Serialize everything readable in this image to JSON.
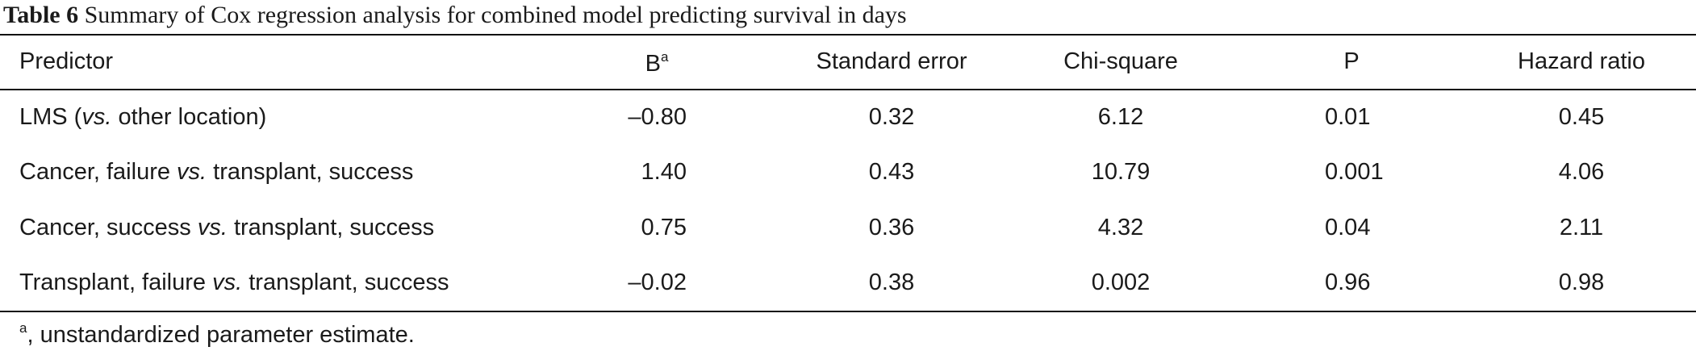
{
  "caption": {
    "label": "Table 6",
    "text": "Summary of Cox regression analysis for combined model predicting survival in days"
  },
  "table": {
    "headers": [
      [
        "Predictor"
      ],
      [
        "B",
        "a"
      ],
      [
        "Standard error"
      ],
      [
        "Chi-square"
      ],
      [
        "P"
      ],
      [
        "Hazard ratio"
      ]
    ],
    "rows": [
      [
        [
          "LMS (",
          "vs.",
          " other location)"
        ],
        "–0.80",
        "0.32",
        "6.12",
        "0.01",
        "0.45"
      ],
      [
        [
          "Cancer, failure ",
          "vs.",
          " transplant, success"
        ],
        "1.40",
        "0.43",
        "10.79",
        "0.001",
        "4.06"
      ],
      [
        [
          "Cancer, success ",
          "vs.",
          " transplant, success"
        ],
        "0.75",
        "0.36",
        "4.32",
        "0.04",
        "2.11"
      ],
      [
        [
          "Transplant, failure ",
          "vs.",
          " transplant, success"
        ],
        "–0.02",
        "0.38",
        "0.002",
        "0.96",
        "0.98"
      ]
    ]
  },
  "footnote": {
    "mark": "a",
    "text": ", unstandardized parameter estimate."
  }
}
